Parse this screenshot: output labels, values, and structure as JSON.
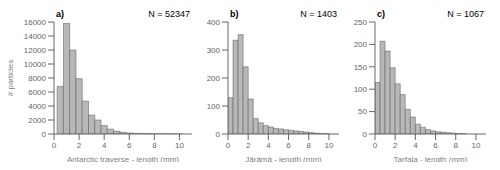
{
  "chart_data": [
    {
      "type": "histogram",
      "title": "a)",
      "annotation": "N = 52347",
      "xlabel": "Antarctic traverse - length (mm)",
      "ylabel": "# particles",
      "xlim": [
        0,
        11
      ],
      "ylim": [
        0,
        16000
      ],
      "xticks": [
        0,
        2,
        4,
        6,
        8,
        10
      ],
      "yticks": [
        0,
        2000,
        4000,
        6000,
        8000,
        10000,
        12000,
        14000,
        16000
      ],
      "bins": [
        0.25,
        0.75,
        1.25,
        1.75,
        2.25,
        2.75,
        3.25,
        3.75,
        4.25,
        4.75,
        5.25,
        5.75,
        6.25,
        6.75,
        7.25,
        7.75,
        8.25,
        8.75,
        9.25,
        9.75,
        10.25
      ],
      "values": [
        6800,
        15800,
        12000,
        7900,
        4700,
        2700,
        2000,
        1200,
        700,
        400,
        250,
        150,
        100,
        70,
        50,
        30,
        20,
        10,
        5,
        5
      ],
      "color": "#b8b8b8",
      "grid": false
    },
    {
      "type": "histogram",
      "title": "b)",
      "annotation": "N = 1403",
      "xlabel": "Järämä - length (mm)",
      "xlim": [
        0,
        11
      ],
      "ylim": [
        0,
        400
      ],
      "xticks": [
        0,
        2,
        4,
        6,
        8,
        10
      ],
      "yticks": [
        0,
        100,
        200,
        300,
        400
      ],
      "bins": [
        0,
        0.5,
        1,
        1.5,
        2,
        2.5,
        3,
        3.5,
        4,
        4.5,
        5,
        5.5,
        6,
        6.5,
        7,
        7.5,
        8,
        8.5,
        9,
        9.5,
        10
      ],
      "values": [
        130,
        335,
        355,
        240,
        125,
        55,
        40,
        30,
        25,
        20,
        18,
        15,
        13,
        11,
        9,
        7,
        5,
        3,
        2,
        1
      ],
      "color": "#b8b8b8",
      "grid": false
    },
    {
      "type": "histogram",
      "title": "c)",
      "annotation": "N = 1067",
      "xlabel": "Tarfala - length (mm)",
      "xlim": [
        0,
        11
      ],
      "ylim": [
        0,
        250
      ],
      "xticks": [
        0,
        2,
        4,
        6,
        8,
        10
      ],
      "yticks": [
        0,
        50,
        100,
        150,
        200,
        250
      ],
      "bins": [
        0,
        0.5,
        1,
        1.5,
        2,
        2.5,
        3,
        3.5,
        4,
        4.5,
        5,
        5.5,
        6,
        6.5,
        7,
        7.5,
        8,
        8.5,
        9,
        9.5,
        10
      ],
      "values": [
        115,
        207,
        185,
        148,
        112,
        88,
        55,
        38,
        22,
        15,
        10,
        7,
        5,
        4,
        3,
        2,
        1,
        1,
        0,
        0
      ],
      "color": "#b8b8b8",
      "grid": false
    }
  ]
}
